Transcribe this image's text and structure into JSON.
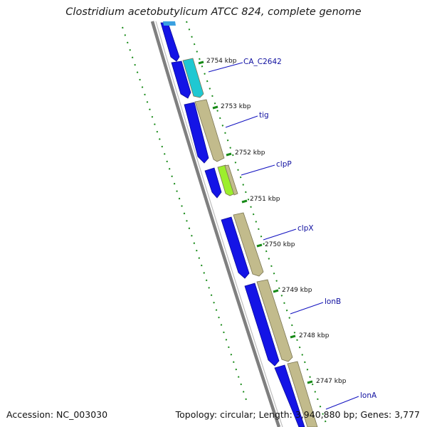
{
  "title": "Clostridium acetobutylicum ATCC 824, complete genome",
  "accession": "Accession: NC_003030",
  "topology": "Topology: circular; Length: 3,940,880 bp; Genes: 3,777",
  "ticks": [
    "2754 kbp",
    "2753 kbp",
    "2752 kbp",
    "2751 kbp",
    "2750 kbp",
    "2749 kbp",
    "2748 kbp",
    "2747 kbp"
  ],
  "genes": [
    "CA_C2642",
    "tig",
    "clpP",
    "clpX",
    "lonB",
    "lonA"
  ],
  "colors": {
    "cds_forward": "#1414e6",
    "cds_reverse_tan": "#c2bb8c",
    "cds_cyan": "#1fc8d2",
    "cds_green": "#9cef2c",
    "backbone": "#7f7f7f",
    "gc_dots": "#178a17",
    "label_color": "#1010a0"
  }
}
